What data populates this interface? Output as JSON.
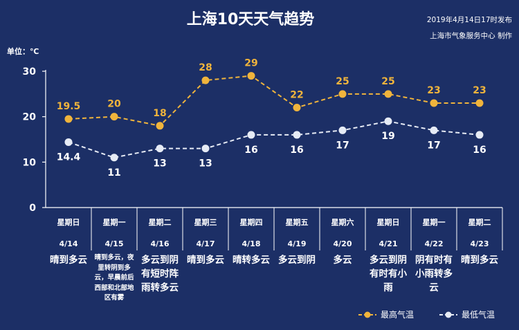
{
  "header": {
    "title": "上海10天天气趋势",
    "publish_time": "2019年4月14日17时发布",
    "publisher": "上海市气象服务中心  制作"
  },
  "chart_data": {
    "type": "line",
    "title": "上海10天天气趋势",
    "ylabel": "单位：℃",
    "ylim": [
      0,
      30
    ],
    "yticks": [
      0,
      10,
      20,
      30
    ],
    "grid": false,
    "legend_position": "bottom-right",
    "categories": [
      {
        "weekday": "星期日",
        "date": "4/14",
        "weather": "晴到多云"
      },
      {
        "weekday": "星期一",
        "date": "4/15",
        "weather": "晴到多云，夜里转阴到多云，早晨前后西部和北部地区有雾"
      },
      {
        "weekday": "星期二",
        "date": "4/16",
        "weather": "多云到阴有短时阵雨转多云"
      },
      {
        "weekday": "星期三",
        "date": "4/17",
        "weather": "晴到多云"
      },
      {
        "weekday": "星期四",
        "date": "4/18",
        "weather": "晴转多云"
      },
      {
        "weekday": "星期五",
        "date": "4/19",
        "weather": "多云到阴"
      },
      {
        "weekday": "星期六",
        "date": "4/20",
        "weather": "多云"
      },
      {
        "weekday": "星期日",
        "date": "4/21",
        "weather": "多云到阴有时有小雨"
      },
      {
        "weekday": "星期一",
        "date": "4/22",
        "weather": "阴有时有小雨转多云"
      },
      {
        "weekday": "星期二",
        "date": "4/23",
        "weather": "晴到多云"
      }
    ],
    "series": [
      {
        "name": "最高气温",
        "color": "#f0b43c",
        "values": [
          19.5,
          20,
          18,
          28,
          29,
          22,
          25,
          25,
          23,
          23
        ]
      },
      {
        "name": "最低气温",
        "color": "#e6ebf5",
        "values": [
          14.4,
          11,
          13,
          13,
          16,
          16,
          17,
          19,
          17,
          16
        ]
      }
    ]
  },
  "colors": {
    "background": "#1c2f66",
    "high": "#f0b43c",
    "low": "#e6ebf5",
    "axis": "#ffffff"
  }
}
